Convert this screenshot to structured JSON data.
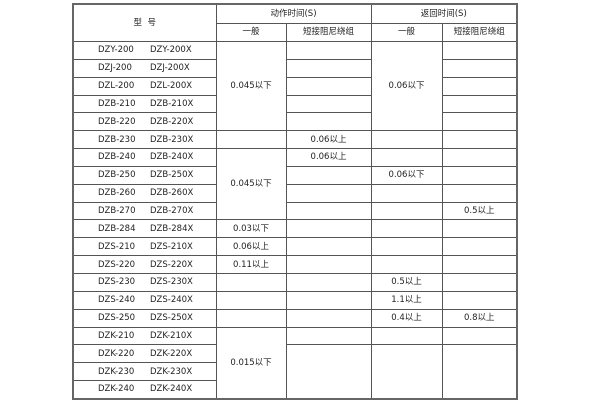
{
  "header": {
    "model": "型  号",
    "operate_time": "动作时间(S)",
    "return_time": "返回时间(S)",
    "general": "一般",
    "short_damping": "短接阻尼绕组"
  },
  "rows": [
    [
      "DZY-200",
      "DZY-200X",
      "0.045以下",
      "",
      "0.06以下",
      ""
    ],
    [
      "DZJ-200",
      "DZJ-200X",
      "",
      "",
      "",
      ""
    ],
    [
      "DZL-200",
      "DZL-200X",
      "",
      "",
      "",
      ""
    ],
    [
      "DZB-210",
      "DZB-210X",
      "",
      "",
      "",
      ""
    ],
    [
      "DZB-220",
      "DZB-220X",
      "",
      "",
      "",
      ""
    ],
    [
      "DZB-230",
      "DZB-230X",
      "",
      "0.06以上",
      "",
      ""
    ],
    [
      "DZB-240",
      "DZB-240X",
      "0.045以下",
      "0.06以上",
      "",
      ""
    ],
    [
      "DZB-250",
      "DZB-250X",
      "",
      "",
      "0.06以下",
      ""
    ],
    [
      "DZB-260",
      "DZB-260X",
      "",
      "",
      "",
      ""
    ],
    [
      "DZB-270",
      "DZB-270X",
      "",
      "",
      "",
      "0.5以上"
    ],
    [
      "DZB-284",
      "DZB-284X",
      "0.03以下",
      "",
      "",
      ""
    ],
    [
      "DZS-210",
      "DZS-210X",
      "0.06以上",
      "",
      "",
      ""
    ],
    [
      "DZS-220",
      "DZS-220X",
      "0.11以上",
      "",
      "",
      ""
    ],
    [
      "DZS-230",
      "DZS-230X",
      "",
      "",
      "0.5以上",
      ""
    ],
    [
      "DZS-240",
      "DZS-240X",
      "",
      "",
      "1.1以上",
      ""
    ],
    [
      "DZS-250",
      "DZS-250X",
      "",
      "",
      "0.4以上",
      "0.8以上"
    ],
    [
      "DZK-210",
      "DZK-210X",
      "0.015以下",
      "",
      "",
      ""
    ],
    [
      "DZK-220",
      "DZK-220X",
      "",
      "",
      "",
      ""
    ],
    [
      "DZK-230",
      "DZK-230X",
      "",
      "",
      "",
      ""
    ],
    [
      "DZK-240",
      "DZK-240X",
      "",
      "",
      "",
      ""
    ]
  ]
}
